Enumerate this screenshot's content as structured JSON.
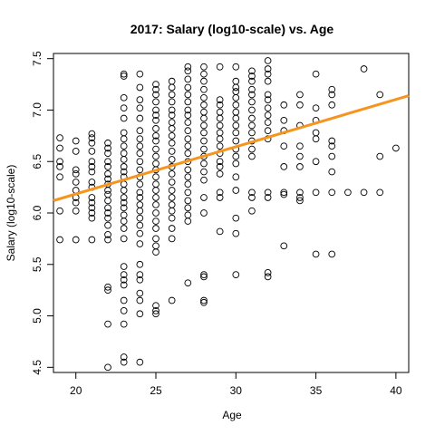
{
  "chart_data": {
    "type": "scatter",
    "title": "2017: Salary (log10-scale) vs. Age",
    "xlabel": "Age",
    "ylabel": "Salary (log10-scale)",
    "xlim": [
      18.6,
      40.8
    ],
    "ylim": [
      4.45,
      7.55
    ],
    "x_ticks": [
      20,
      25,
      30,
      35,
      40
    ],
    "y_ticks": [
      4.5,
      5.0,
      5.5,
      6.0,
      6.5,
      7.0,
      7.5
    ],
    "x_tick_labels": [
      "20",
      "25",
      "30",
      "35",
      "40"
    ],
    "y_tick_labels": [
      "4.5",
      "5.0",
      "5.5",
      "6.0",
      "6.5",
      "7.0",
      "7.5"
    ],
    "grid": false,
    "point_color": "#000000",
    "fit_line": {
      "color": "#f7941d",
      "x": [
        18.6,
        40.8
      ],
      "y": [
        6.12,
        7.14
      ]
    },
    "points": [
      [
        19,
        6.73
      ],
      [
        19,
        6.63
      ],
      [
        19,
        6.5
      ],
      [
        19,
        6.45
      ],
      [
        19,
        6.35
      ],
      [
        19,
        6.02
      ],
      [
        19,
        5.74
      ],
      [
        20,
        6.7
      ],
      [
        20,
        6.6
      ],
      [
        20,
        6.42
      ],
      [
        20,
        6.38
      ],
      [
        20,
        6.3
      ],
      [
        20,
        6.22
      ],
      [
        20,
        6.15
      ],
      [
        20,
        6.1
      ],
      [
        20,
        6.02
      ],
      [
        20,
        5.74
      ],
      [
        21,
        6.77
      ],
      [
        21,
        6.73
      ],
      [
        21,
        6.68
      ],
      [
        21,
        6.6
      ],
      [
        21,
        6.5
      ],
      [
        21,
        6.45
      ],
      [
        21,
        6.4
      ],
      [
        21,
        6.3
      ],
      [
        21,
        6.25
      ],
      [
        21,
        6.15
      ],
      [
        21,
        6.1
      ],
      [
        21,
        6.05
      ],
      [
        21,
        6.0
      ],
      [
        21,
        5.95
      ],
      [
        21,
        5.74
      ],
      [
        22,
        6.68
      ],
      [
        22,
        6.63
      ],
      [
        22,
        6.58
      ],
      [
        22,
        6.5
      ],
      [
        22,
        6.45
      ],
      [
        22,
        6.38
      ],
      [
        22,
        6.33
      ],
      [
        22,
        6.28
      ],
      [
        22,
        6.22
      ],
      [
        22,
        6.18
      ],
      [
        22,
        6.12
      ],
      [
        22,
        6.05
      ],
      [
        22,
        6.0
      ],
      [
        22,
        5.95
      ],
      [
        22,
        5.88
      ],
      [
        22,
        5.79
      ],
      [
        22,
        5.74
      ],
      [
        22,
        5.28
      ],
      [
        22,
        5.25
      ],
      [
        22,
        4.92
      ],
      [
        22,
        4.5
      ],
      [
        23,
        7.35
      ],
      [
        23,
        7.33
      ],
      [
        23,
        7.12
      ],
      [
        23,
        7.02
      ],
      [
        23,
        6.92
      ],
      [
        23,
        6.78
      ],
      [
        23,
        6.72
      ],
      [
        23,
        6.65
      ],
      [
        23,
        6.58
      ],
      [
        23,
        6.52
      ],
      [
        23,
        6.45
      ],
      [
        23,
        6.4
      ],
      [
        23,
        6.35
      ],
      [
        23,
        6.28
      ],
      [
        23,
        6.22
      ],
      [
        23,
        6.15
      ],
      [
        23,
        6.1
      ],
      [
        23,
        6.05
      ],
      [
        23,
        5.98
      ],
      [
        23,
        5.92
      ],
      [
        23,
        5.85
      ],
      [
        23,
        5.75
      ],
      [
        23,
        5.48
      ],
      [
        23,
        5.4
      ],
      [
        23,
        5.35
      ],
      [
        23,
        5.3
      ],
      [
        23,
        5.15
      ],
      [
        23,
        5.05
      ],
      [
        23,
        4.92
      ],
      [
        23,
        4.6
      ],
      [
        23,
        4.55
      ],
      [
        24,
        7.35
      ],
      [
        24,
        7.22
      ],
      [
        24,
        7.1
      ],
      [
        24,
        7.02
      ],
      [
        24,
        6.92
      ],
      [
        24,
        6.8
      ],
      [
        24,
        6.72
      ],
      [
        24,
        6.65
      ],
      [
        24,
        6.58
      ],
      [
        24,
        6.5
      ],
      [
        24,
        6.42
      ],
      [
        24,
        6.35
      ],
      [
        24,
        6.28
      ],
      [
        24,
        6.2
      ],
      [
        24,
        6.15
      ],
      [
        24,
        6.08
      ],
      [
        24,
        6.02
      ],
      [
        24,
        5.95
      ],
      [
        24,
        5.88
      ],
      [
        24,
        5.8
      ],
      [
        24,
        5.7
      ],
      [
        24,
        5.5
      ],
      [
        24,
        5.4
      ],
      [
        24,
        5.35
      ],
      [
        24,
        5.22
      ],
      [
        24,
        5.15
      ],
      [
        24,
        5.02
      ],
      [
        24,
        4.55
      ],
      [
        25,
        7.25
      ],
      [
        25,
        7.2
      ],
      [
        25,
        7.15
      ],
      [
        25,
        7.08
      ],
      [
        25,
        7.0
      ],
      [
        25,
        6.95
      ],
      [
        25,
        6.9
      ],
      [
        25,
        6.82
      ],
      [
        25,
        6.75
      ],
      [
        25,
        6.7
      ],
      [
        25,
        6.62
      ],
      [
        25,
        6.55
      ],
      [
        25,
        6.48
      ],
      [
        25,
        6.42
      ],
      [
        25,
        6.35
      ],
      [
        25,
        6.28
      ],
      [
        25,
        6.22
      ],
      [
        25,
        6.15
      ],
      [
        25,
        6.08
      ],
      [
        25,
        6.0
      ],
      [
        25,
        5.92
      ],
      [
        25,
        5.85
      ],
      [
        25,
        5.75
      ],
      [
        25,
        5.68
      ],
      [
        25,
        5.62
      ],
      [
        25,
        5.1
      ],
      [
        25,
        5.05
      ],
      [
        25,
        5.02
      ],
      [
        26,
        7.28
      ],
      [
        26,
        7.22
      ],
      [
        26,
        7.15
      ],
      [
        26,
        7.08
      ],
      [
        26,
        7.0
      ],
      [
        26,
        6.95
      ],
      [
        26,
        6.88
      ],
      [
        26,
        6.82
      ],
      [
        26,
        6.75
      ],
      [
        26,
        6.68
      ],
      [
        26,
        6.6
      ],
      [
        26,
        6.52
      ],
      [
        26,
        6.45
      ],
      [
        26,
        6.38
      ],
      [
        26,
        6.3
      ],
      [
        26,
        6.22
      ],
      [
        26,
        6.15
      ],
      [
        26,
        6.08
      ],
      [
        26,
        6.02
      ],
      [
        26,
        5.95
      ],
      [
        26,
        5.85
      ],
      [
        26,
        5.75
      ],
      [
        26,
        5.15
      ],
      [
        27,
        7.42
      ],
      [
        27,
        7.38
      ],
      [
        27,
        7.3
      ],
      [
        27,
        7.22
      ],
      [
        27,
        7.15
      ],
      [
        27,
        7.08
      ],
      [
        27,
        7.0
      ],
      [
        27,
        6.95
      ],
      [
        27,
        6.88
      ],
      [
        27,
        6.8
      ],
      [
        27,
        6.72
      ],
      [
        27,
        6.65
      ],
      [
        27,
        6.58
      ],
      [
        27,
        6.5
      ],
      [
        27,
        6.42
      ],
      [
        27,
        6.35
      ],
      [
        27,
        6.28
      ],
      [
        27,
        6.2
      ],
      [
        27,
        6.12
      ],
      [
        27,
        6.05
      ],
      [
        27,
        5.98
      ],
      [
        27,
        5.92
      ],
      [
        27,
        5.32
      ],
      [
        28,
        7.42
      ],
      [
        28,
        7.35
      ],
      [
        28,
        7.28
      ],
      [
        28,
        7.2
      ],
      [
        28,
        7.12
      ],
      [
        28,
        7.05
      ],
      [
        28,
        6.98
      ],
      [
        28,
        6.92
      ],
      [
        28,
        6.85
      ],
      [
        28,
        6.78
      ],
      [
        28,
        6.7
      ],
      [
        28,
        6.62
      ],
      [
        28,
        6.55
      ],
      [
        28,
        6.48
      ],
      [
        28,
        6.4
      ],
      [
        28,
        6.32
      ],
      [
        28,
        6.15
      ],
      [
        28,
        6.0
      ],
      [
        28,
        5.4
      ],
      [
        28,
        5.38
      ],
      [
        28,
        5.15
      ],
      [
        28,
        5.13
      ],
      [
        29,
        7.42
      ],
      [
        29,
        7.1
      ],
      [
        29,
        7.05
      ],
      [
        29,
        6.98
      ],
      [
        29,
        6.92
      ],
      [
        29,
        6.85
      ],
      [
        29,
        6.78
      ],
      [
        29,
        6.72
      ],
      [
        29,
        6.65
      ],
      [
        29,
        6.58
      ],
      [
        29,
        6.5
      ],
      [
        29,
        6.45
      ],
      [
        29,
        6.38
      ],
      [
        29,
        6.2
      ],
      [
        29,
        6.15
      ],
      [
        29,
        5.82
      ],
      [
        30,
        7.42
      ],
      [
        30,
        7.28
      ],
      [
        30,
        7.22
      ],
      [
        30,
        7.18
      ],
      [
        30,
        7.12
      ],
      [
        30,
        7.05
      ],
      [
        30,
        6.98
      ],
      [
        30,
        6.92
      ],
      [
        30,
        6.85
      ],
      [
        30,
        6.78
      ],
      [
        30,
        6.7
      ],
      [
        30,
        6.62
      ],
      [
        30,
        6.55
      ],
      [
        30,
        6.48
      ],
      [
        30,
        6.35
      ],
      [
        30,
        6.22
      ],
      [
        30,
        5.95
      ],
      [
        30,
        5.8
      ],
      [
        30,
        5.4
      ],
      [
        31,
        7.38
      ],
      [
        31,
        7.33
      ],
      [
        31,
        7.28
      ],
      [
        31,
        7.2
      ],
      [
        31,
        7.15
      ],
      [
        31,
        7.08
      ],
      [
        31,
        7.0
      ],
      [
        31,
        6.92
      ],
      [
        31,
        6.85
      ],
      [
        31,
        6.78
      ],
      [
        31,
        6.7
      ],
      [
        31,
        6.62
      ],
      [
        31,
        6.55
      ],
      [
        31,
        6.2
      ],
      [
        31,
        6.15
      ],
      [
        31,
        6.02
      ],
      [
        32,
        7.48
      ],
      [
        32,
        7.4
      ],
      [
        32,
        7.35
      ],
      [
        32,
        7.28
      ],
      [
        32,
        7.15
      ],
      [
        32,
        7.1
      ],
      [
        32,
        7.02
      ],
      [
        32,
        6.95
      ],
      [
        32,
        6.88
      ],
      [
        32,
        6.8
      ],
      [
        32,
        6.72
      ],
      [
        32,
        6.2
      ],
      [
        32,
        6.15
      ],
      [
        32,
        5.42
      ],
      [
        32,
        5.38
      ],
      [
        33,
        7.05
      ],
      [
        33,
        6.9
      ],
      [
        33,
        6.8
      ],
      [
        33,
        6.65
      ],
      [
        33,
        6.45
      ],
      [
        33,
        6.2
      ],
      [
        33,
        6.18
      ],
      [
        33,
        5.68
      ],
      [
        34,
        7.15
      ],
      [
        34,
        7.05
      ],
      [
        34,
        6.85
      ],
      [
        34,
        6.65
      ],
      [
        34,
        6.55
      ],
      [
        34,
        6.45
      ],
      [
        34,
        6.2
      ],
      [
        34,
        6.15
      ],
      [
        34,
        6.12
      ],
      [
        35,
        7.35
      ],
      [
        35,
        7.02
      ],
      [
        35,
        6.9
      ],
      [
        35,
        6.78
      ],
      [
        35,
        6.72
      ],
      [
        35,
        6.5
      ],
      [
        35,
        6.2
      ],
      [
        35,
        5.6
      ],
      [
        36,
        7.2
      ],
      [
        36,
        7.15
      ],
      [
        36,
        7.05
      ],
      [
        36,
        6.7
      ],
      [
        36,
        6.65
      ],
      [
        36,
        6.55
      ],
      [
        36,
        6.4
      ],
      [
        36,
        6.2
      ],
      [
        36,
        5.6
      ],
      [
        37,
        6.2
      ],
      [
        38,
        7.4
      ],
      [
        38,
        6.2
      ],
      [
        39,
        7.15
      ],
      [
        39,
        6.55
      ],
      [
        39,
        6.2
      ],
      [
        40,
        6.63
      ]
    ]
  }
}
